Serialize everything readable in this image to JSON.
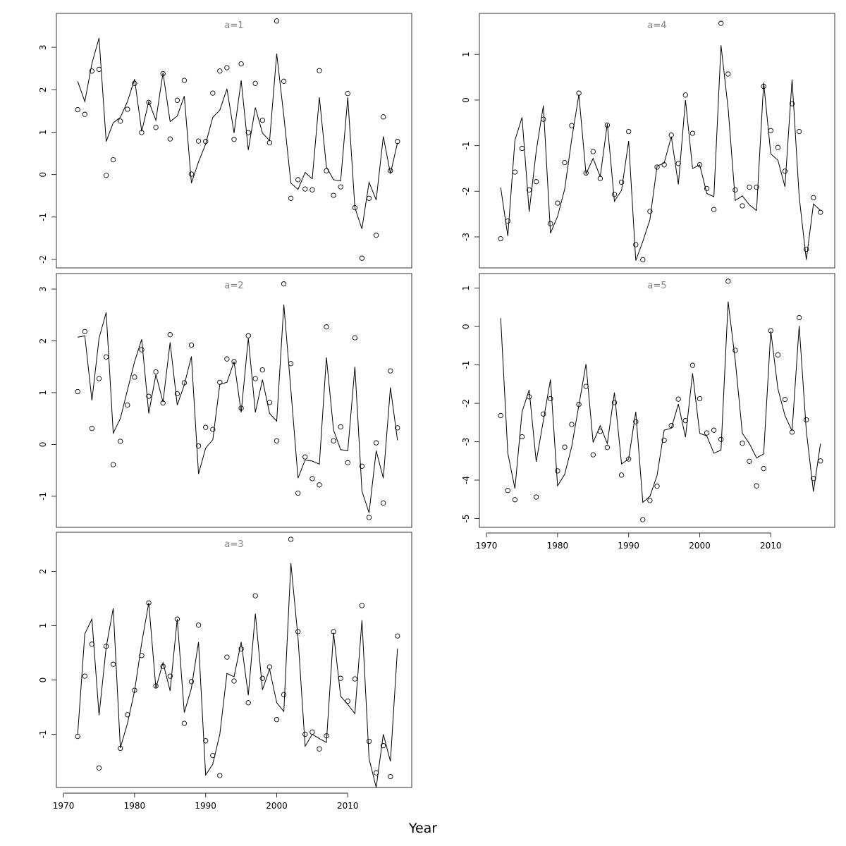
{
  "figure": {
    "xlabel": "Year",
    "x_ticks": [
      1970,
      1980,
      1990,
      2000,
      2010
    ]
  },
  "chart_data": [
    {
      "type": "line",
      "title": "a=1",
      "xlim": [
        1969,
        2019
      ],
      "ylim": [
        -2.2,
        3.8
      ],
      "y_ticks": [
        -2,
        -1,
        0,
        1,
        2,
        3
      ],
      "x": [
        1972,
        1973,
        1974,
        1975,
        1976,
        1977,
        1978,
        1979,
        1980,
        1981,
        1982,
        1983,
        1984,
        1985,
        1986,
        1987,
        1988,
        1989,
        1990,
        1991,
        1992,
        1993,
        1994,
        1995,
        1996,
        1997,
        1998,
        1999,
        2000,
        2001,
        2002,
        2003,
        2004,
        2005,
        2006,
        2007,
        2008,
        2009,
        2010,
        2011,
        2012,
        2013,
        2014,
        2015,
        2016,
        2017
      ],
      "series": [
        {
          "values": [
            2.2,
            1.72,
            2.62,
            3.22,
            0.78,
            1.22,
            1.35,
            1.72,
            2.25,
            1.02,
            1.72,
            1.28,
            2.4,
            1.25,
            1.38,
            1.85,
            -0.2,
            0.3,
            0.72,
            1.35,
            1.52,
            2.02,
            0.98,
            2.22,
            0.58,
            1.58,
            0.98,
            0.8,
            2.85,
            1.38,
            -0.2,
            -0.35,
            0.05,
            -0.1,
            1.82,
            0.18,
            -0.12,
            -0.15,
            1.82,
            -0.78,
            -1.28,
            -0.18,
            -0.6,
            0.9,
            0.02,
            0.75
          ]
        },
        {
          "values": [
            1.53,
            1.42,
            2.44,
            2.48,
            -0.02,
            0.35,
            1.26,
            1.54,
            2.15,
            0.99,
            1.7,
            1.11,
            2.38,
            0.84,
            1.75,
            2.22,
            0.01,
            0.79,
            0.78,
            1.92,
            2.44,
            2.52,
            0.83,
            2.61,
            0.99,
            2.15,
            1.28,
            0.75,
            3.62,
            2.2,
            -0.56,
            -0.12,
            -0.34,
            -0.36,
            2.45,
            0.09,
            -0.49,
            -0.29,
            1.91,
            -0.78,
            -1.97,
            -0.56,
            -1.43,
            1.36,
            0.09,
            0.78
          ]
        }
      ]
    },
    {
      "type": "line",
      "title": "a=2",
      "xlim": [
        1969,
        2019
      ],
      "ylim": [
        -1.6,
        3.3
      ],
      "y_ticks": [
        -1,
        0,
        1,
        2,
        3
      ],
      "x": [
        1972,
        1973,
        1974,
        1975,
        1976,
        1977,
        1978,
        1979,
        1980,
        1981,
        1982,
        1983,
        1984,
        1985,
        1986,
        1987,
        1988,
        1989,
        1990,
        1991,
        1992,
        1993,
        1994,
        1995,
        1996,
        1997,
        1998,
        1999,
        2000,
        2001,
        2002,
        2003,
        2004,
        2005,
        2006,
        2007,
        2008,
        2009,
        2010,
        2011,
        2012,
        2013,
        2014,
        2015,
        2016,
        2017
      ],
      "series": [
        {
          "values": [
            2.07,
            2.1,
            0.85,
            2.05,
            2.55,
            0.22,
            0.5,
            1.05,
            1.6,
            2.03,
            0.6,
            1.35,
            0.82,
            1.97,
            0.76,
            1.15,
            1.7,
            -0.57,
            -0.07,
            0.09,
            1.16,
            1.2,
            1.6,
            0.62,
            2.05,
            0.62,
            1.25,
            0.6,
            0.45,
            2.7,
            1.05,
            -0.65,
            -0.3,
            -0.32,
            -0.38,
            1.68,
            0.28,
            -0.1,
            -0.12,
            1.5,
            -0.9,
            -1.32,
            -0.12,
            -0.65,
            1.1,
            0.08
          ]
        },
        {
          "values": [
            1.02,
            2.18,
            0.31,
            1.27,
            1.69,
            -0.39,
            0.06,
            0.76,
            1.3,
            1.83,
            0.93,
            1.4,
            0.8,
            2.12,
            0.98,
            1.19,
            1.92,
            -0.03,
            0.33,
            0.29,
            1.2,
            1.65,
            1.6,
            0.7,
            2.1,
            1.27,
            1.44,
            0.81,
            0.07,
            3.1,
            1.56,
            -0.94,
            -0.24,
            -0.66,
            -0.78,
            2.27,
            0.07,
            0.34,
            -0.35,
            2.06,
            -0.42,
            -1.41,
            0.03,
            -1.13,
            1.42,
            0.32
          ]
        }
      ]
    },
    {
      "type": "line",
      "title": "a=3",
      "xlim": [
        1969,
        2019
      ],
      "ylim": [
        -1.98,
        2.72
      ],
      "y_ticks": [
        -1,
        0,
        1,
        2
      ],
      "x": [
        1972,
        1973,
        1974,
        1975,
        1976,
        1977,
        1978,
        1979,
        1980,
        1981,
        1982,
        1983,
        1984,
        1985,
        1986,
        1987,
        1988,
        1989,
        1990,
        1991,
        1992,
        1993,
        1994,
        1995,
        1996,
        1997,
        1998,
        1999,
        2000,
        2001,
        2002,
        2003,
        2004,
        2005,
        2006,
        2007,
        2008,
        2009,
        2010,
        2011,
        2012,
        2013,
        2014,
        2015,
        2016,
        2017
      ],
      "series": [
        {
          "values": [
            -1.0,
            0.85,
            1.12,
            -0.65,
            0.6,
            1.32,
            -1.25,
            -0.8,
            -0.2,
            0.68,
            1.42,
            -0.15,
            0.32,
            -0.2,
            1.12,
            -0.6,
            -0.15,
            0.7,
            -1.75,
            -1.55,
            -1.0,
            0.12,
            0.06,
            0.7,
            -0.28,
            1.22,
            -0.18,
            0.2,
            -0.42,
            -0.58,
            2.15,
            0.78,
            -1.22,
            -1.0,
            -1.08,
            -1.15,
            0.87,
            -0.3,
            -0.45,
            -0.62,
            1.1,
            -1.45,
            -1.98,
            -1.0,
            -1.5,
            0.58
          ]
        },
        {
          "values": [
            -1.04,
            0.07,
            0.66,
            -1.62,
            0.62,
            0.29,
            -1.26,
            -0.64,
            -0.19,
            0.45,
            1.42,
            -0.11,
            0.25,
            0.07,
            1.12,
            -0.8,
            -0.03,
            1.01,
            -1.12,
            -1.39,
            -1.76,
            0.42,
            -0.02,
            0.57,
            -0.42,
            1.55,
            0.03,
            0.24,
            -0.73,
            -0.27,
            2.59,
            0.89,
            -1.0,
            -0.96,
            -1.27,
            -1.03,
            0.89,
            0.03,
            -0.39,
            0.02,
            1.37,
            -1.13,
            -1.71,
            -1.21,
            -1.78,
            0.81
          ]
        }
      ]
    },
    {
      "type": "line",
      "title": "a=4",
      "xlim": [
        1969,
        2019
      ],
      "ylim": [
        -3.68,
        1.9
      ],
      "y_ticks": [
        -3,
        -2,
        -1,
        0,
        1
      ],
      "x": [
        1972,
        1973,
        1974,
        1975,
        1976,
        1977,
        1978,
        1979,
        1980,
        1981,
        1982,
        1983,
        1984,
        1985,
        1986,
        1987,
        1988,
        1989,
        1990,
        1991,
        1992,
        1993,
        1994,
        1995,
        1996,
        1997,
        1998,
        1999,
        2000,
        2001,
        2002,
        2003,
        2004,
        2005,
        2006,
        2007,
        2008,
        2009,
        2010,
        2011,
        2012,
        2013,
        2014,
        2015,
        2016,
        2017
      ],
      "series": [
        {
          "values": [
            -1.92,
            -2.98,
            -0.88,
            -0.38,
            -2.45,
            -1.12,
            -0.12,
            -2.92,
            -2.55,
            -1.95,
            -0.85,
            0.12,
            -1.62,
            -1.28,
            -1.68,
            -0.52,
            -2.22,
            -1.98,
            -0.9,
            -3.52,
            -3.1,
            -2.62,
            -1.45,
            -1.38,
            -0.8,
            -1.85,
            0.0,
            -1.5,
            -1.42,
            -2.05,
            -2.12,
            1.2,
            -0.18,
            -2.2,
            -2.1,
            -2.3,
            -2.42,
            0.38,
            -1.18,
            -1.32,
            -1.9,
            0.45,
            -2.12,
            -3.5,
            -2.28,
            -2.42
          ]
        },
        {
          "values": [
            -3.04,
            -2.65,
            -1.58,
            -1.06,
            -1.97,
            -1.79,
            -0.42,
            -2.71,
            -2.26,
            -1.37,
            -0.56,
            0.15,
            -1.6,
            -1.13,
            -1.72,
            -0.55,
            -2.07,
            -1.8,
            -0.69,
            -3.17,
            -3.5,
            -2.44,
            -1.47,
            -1.42,
            -0.77,
            -1.39,
            0.11,
            -0.73,
            -1.42,
            -1.94,
            -2.4,
            1.68,
            0.57,
            -1.97,
            -2.32,
            -1.91,
            -1.91,
            0.3,
            -0.67,
            -1.04,
            -1.56,
            -0.08,
            -0.69,
            -3.27,
            -2.14,
            -2.46
          ]
        }
      ]
    },
    {
      "type": "line",
      "title": "a=5",
      "xlim": [
        1969,
        2019
      ],
      "ylim": [
        -5.23,
        1.38
      ],
      "y_ticks": [
        -5,
        -4,
        -3,
        -2,
        -1,
        0,
        1
      ],
      "x": [
        1972,
        1973,
        1974,
        1975,
        1976,
        1977,
        1978,
        1979,
        1980,
        1981,
        1982,
        1983,
        1984,
        1985,
        1986,
        1987,
        1988,
        1989,
        1990,
        1991,
        1992,
        1993,
        1994,
        1995,
        1996,
        1997,
        1998,
        1999,
        2000,
        2001,
        2002,
        2003,
        2004,
        2005,
        2006,
        2007,
        2008,
        2009,
        2010,
        2011,
        2012,
        2013,
        2014,
        2015,
        2016,
        2017
      ],
      "series": [
        {
          "values": [
            0.22,
            -3.3,
            -4.22,
            -2.22,
            -1.65,
            -3.52,
            -2.45,
            -1.38,
            -4.15,
            -3.85,
            -3.12,
            -2.05,
            -0.98,
            -3.02,
            -2.58,
            -3.05,
            -1.72,
            -3.58,
            -3.45,
            -2.22,
            -4.58,
            -4.42,
            -3.88,
            -2.7,
            -2.65,
            -2.02,
            -2.88,
            -1.22,
            -2.78,
            -2.85,
            -3.3,
            -3.22,
            0.65,
            -0.88,
            -2.78,
            -3.05,
            -3.42,
            -3.32,
            -0.12,
            -1.62,
            -2.32,
            -2.72,
            0.02,
            -2.72,
            -4.3,
            -3.05
          ]
        },
        {
          "values": [
            -2.32,
            -4.27,
            -4.51,
            -2.87,
            -1.83,
            -4.44,
            -2.28,
            -1.88,
            -3.76,
            -3.14,
            -2.55,
            -2.03,
            -1.56,
            -3.34,
            -2.73,
            -3.15,
            -1.98,
            -3.87,
            -3.45,
            -2.48,
            -5.03,
            -4.53,
            -4.16,
            -2.96,
            -2.58,
            -1.89,
            -2.45,
            -1.01,
            -1.88,
            -2.77,
            -2.7,
            -2.94,
            1.18,
            -0.62,
            -3.04,
            -3.51,
            -4.15,
            -3.7,
            -0.11,
            -0.74,
            -1.9,
            -2.75,
            0.23,
            -2.43,
            -3.96,
            -3.5
          ]
        }
      ]
    }
  ]
}
